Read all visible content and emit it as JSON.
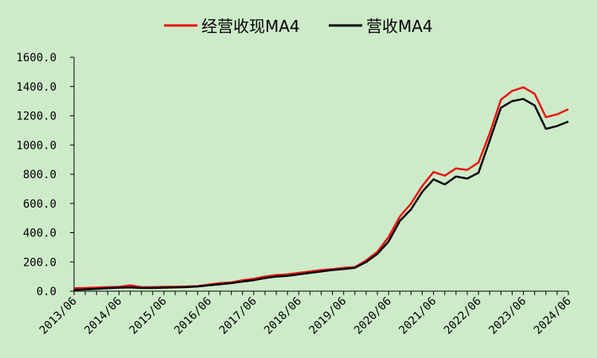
{
  "chart_data": {
    "type": "line",
    "x": [
      "2013/06",
      "2013/09",
      "2013/12",
      "2014/03",
      "2014/06",
      "2014/09",
      "2014/12",
      "2015/03",
      "2015/06",
      "2015/09",
      "2015/12",
      "2016/03",
      "2016/06",
      "2016/09",
      "2016/12",
      "2017/03",
      "2017/06",
      "2017/09",
      "2017/12",
      "2018/03",
      "2018/06",
      "2018/09",
      "2018/12",
      "2019/03",
      "2019/06",
      "2019/09",
      "2019/12",
      "2020/03",
      "2020/06",
      "2020/09",
      "2020/12",
      "2021/03",
      "2021/06",
      "2021/09",
      "2021/12",
      "2022/03",
      "2022/06",
      "2022/09",
      "2022/12",
      "2023/03",
      "2023/06",
      "2023/09",
      "2023/12",
      "2024/03",
      "2024/06"
    ],
    "x_tick_labels": [
      "2013/06",
      "2014/06",
      "2015/06",
      "2016/06",
      "2017/06",
      "2018/06",
      "2019/06",
      "2020/06",
      "2021/06",
      "2022/06",
      "2023/06",
      "2024/06"
    ],
    "series": [
      {
        "name": "经营收现MA4",
        "color": "#e8140f",
        "values": [
          20,
          22,
          25,
          28,
          30,
          40,
          28,
          28,
          30,
          30,
          32,
          35,
          45,
          55,
          60,
          75,
          85,
          100,
          110,
          115,
          125,
          135,
          145,
          150,
          160,
          165,
          210,
          270,
          370,
          510,
          600,
          720,
          815,
          790,
          840,
          830,
          880,
          1080,
          1310,
          1370,
          1395,
          1350,
          1190,
          1210,
          1245
        ]
      },
      {
        "name": "营收MA4",
        "color": "#000000",
        "values": [
          8,
          12,
          16,
          20,
          24,
          26,
          22,
          22,
          24,
          26,
          28,
          32,
          40,
          48,
          55,
          66,
          75,
          90,
          100,
          105,
          115,
          125,
          135,
          145,
          152,
          160,
          200,
          255,
          340,
          480,
          560,
          680,
          765,
          730,
          785,
          770,
          810,
          1030,
          1255,
          1300,
          1315,
          1270,
          1110,
          1130,
          1160
        ]
      }
    ],
    "ylim": [
      0,
      1600
    ],
    "y_ticks": [
      "0.0",
      "200.0",
      "400.0",
      "600.0",
      "800.0",
      "1000.0",
      "1200.0",
      "1400.0",
      "1600.0"
    ],
    "grid": false,
    "legend_position": "top-center"
  }
}
